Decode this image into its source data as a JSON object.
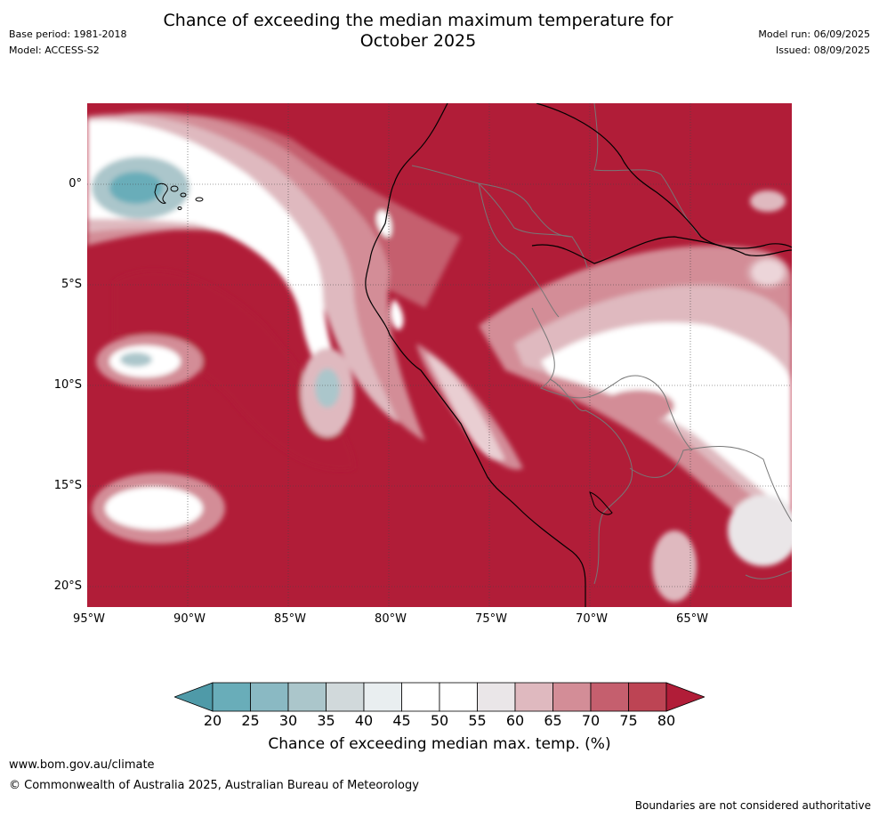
{
  "header": {
    "title_line1": "Chance of exceeding the median maximum temperature for",
    "title_line2": "October 2025",
    "base_period": "Base period: 1981-2018",
    "model": "Model: ACCESS-S2",
    "model_run": "Model run: 06/09/2025",
    "issued": "Issued: 08/09/2025"
  },
  "map": {
    "lat_labels": [
      "0°",
      "5°S",
      "10°S",
      "15°S",
      "20°S"
    ],
    "lon_labels": [
      "95°W",
      "90°W",
      "85°W",
      "80°W",
      "75°W",
      "70°W",
      "65°W"
    ],
    "extent": {
      "lon_min": -95,
      "lon_max": -60,
      "lat_min": -21,
      "lat_max": 4
    }
  },
  "colorbar": {
    "title": "Chance of exceeding median max. temp. (%)",
    "ticks": [
      "20",
      "25",
      "30",
      "35",
      "40",
      "45",
      "50",
      "55",
      "60",
      "65",
      "70",
      "75",
      "80"
    ],
    "colors": [
      "#4f9aa8",
      "#69adb9",
      "#8ab9c3",
      "#abc6cb",
      "#d1d9db",
      "#e9eef0",
      "#ffffff",
      "#ffffff",
      "#eae6e8",
      "#dfb9bf",
      "#d38d97",
      "#c55f6e",
      "#bd4454",
      "#b11d38"
    ]
  },
  "footer": {
    "url": "www.bom.gov.au/climate",
    "copyright": "© Commonwealth of Australia 2025, Australian Bureau of Meteorology",
    "disclaimer": "Boundaries are not considered authoritative"
  }
}
